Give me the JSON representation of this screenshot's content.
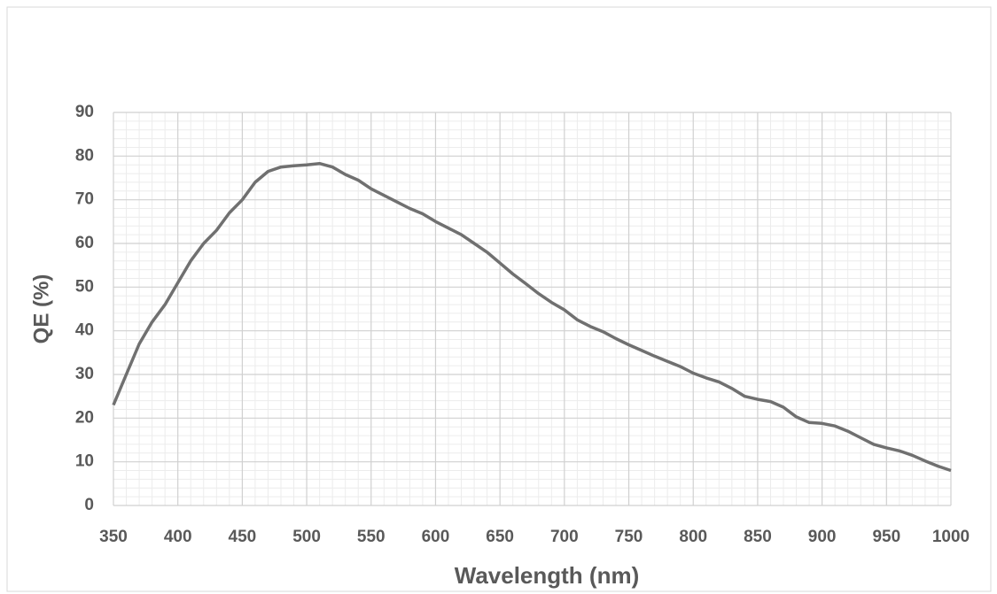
{
  "chart_data": {
    "type": "line",
    "x_label": "Wavelength (nm)",
    "y_label": "QE (%)",
    "x": [
      350,
      360,
      370,
      380,
      390,
      400,
      410,
      420,
      430,
      440,
      450,
      460,
      470,
      480,
      490,
      500,
      510,
      520,
      530,
      540,
      550,
      560,
      570,
      580,
      590,
      600,
      610,
      620,
      630,
      640,
      650,
      660,
      670,
      680,
      690,
      700,
      710,
      720,
      730,
      740,
      750,
      760,
      770,
      780,
      790,
      800,
      810,
      820,
      830,
      840,
      850,
      860,
      870,
      880,
      890,
      900,
      910,
      920,
      930,
      940,
      950,
      960,
      970,
      980,
      990,
      1000
    ],
    "series": [
      {
        "name": "QE",
        "color": "#707070",
        "values": [
          23,
          30,
          37,
          42,
          46,
          51,
          56,
          60,
          63,
          67,
          70,
          74,
          76.5,
          77.5,
          77.8,
          78,
          78.3,
          77.5,
          75.8,
          74.5,
          72.5,
          71,
          69.5,
          68,
          66.8,
          65,
          63.5,
          62,
          60,
          58,
          55.5,
          53,
          50.8,
          48.5,
          46.5,
          44.8,
          42.5,
          41,
          39.8,
          38.2,
          36.8,
          35.5,
          34.2,
          33,
          31.8,
          30.3,
          29.2,
          28.3,
          26.8,
          25,
          24.3,
          23.8,
          22.5,
          20.3,
          19,
          18.8,
          18.2,
          17,
          15.5,
          14,
          13.2,
          12.5,
          11.5,
          10.2,
          9,
          8
        ]
      }
    ],
    "xlim": [
      350,
      1000
    ],
    "xticks": [
      350,
      400,
      450,
      500,
      550,
      600,
      650,
      700,
      750,
      800,
      850,
      900,
      950,
      1000
    ],
    "ylim": [
      0,
      90
    ],
    "yticks": [
      0,
      10,
      20,
      30,
      40,
      50,
      60,
      70,
      80,
      90
    ],
    "grid": true,
    "minor_grid": true
  }
}
